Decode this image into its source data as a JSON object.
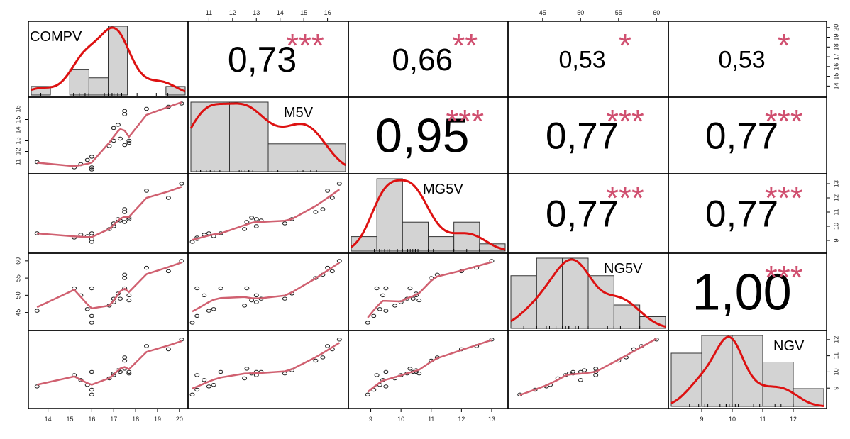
{
  "chart_data": {
    "type": "scatter_matrix",
    "title": "",
    "variables": [
      {
        "name": "COMPV",
        "range": [
          13.3,
          20.2
        ],
        "ticks": [
          14,
          15,
          16,
          17,
          18,
          19,
          20
        ],
        "hist": {
          "breaks": [
            13,
            14,
            15,
            16,
            17,
            18,
            19,
            20,
            21
          ],
          "counts": [
            1,
            0,
            3,
            2,
            8,
            0,
            0,
            1
          ]
        }
      },
      {
        "name": "M5V",
        "range": [
          10.3,
          16.7
        ],
        "ticks": [
          11,
          12,
          13,
          14,
          15,
          16
        ],
        "hist": {
          "breaks": [
            10,
            12,
            14,
            16,
            18
          ],
          "counts": [
            5,
            5,
            2,
            2
          ]
        }
      },
      {
        "name": "MG5V",
        "range": [
          8.4,
          13.4
        ],
        "ticks": [
          9,
          10,
          11,
          12,
          13
        ],
        "hist": {
          "breaks": [
            8,
            9,
            10,
            11,
            12,
            13,
            14
          ],
          "counts": [
            1,
            5,
            2,
            1,
            2,
            0.5
          ]
        }
      },
      {
        "name": "NG5V",
        "range": [
          41,
          61
        ],
        "ticks": [
          45,
          50,
          55,
          60
        ],
        "hist": {
          "breaks": [
            40,
            44,
            48,
            52,
            56,
            60,
            64
          ],
          "counts": [
            4.5,
            6,
            6,
            4.5,
            2,
            1
          ]
        }
      },
      {
        "name": "NGV",
        "range": [
          8,
          12.3
        ],
        "ticks": [
          9,
          10,
          11,
          12
        ],
        "hist": {
          "breaks": [
            8,
            9,
            10,
            11,
            12,
            13
          ],
          "counts": [
            3,
            4,
            4,
            2.5,
            1
          ]
        }
      }
    ],
    "correlations": [
      {
        "row": 0,
        "col": 1,
        "value": "0,73",
        "stars": "***"
      },
      {
        "row": 0,
        "col": 2,
        "value": "0,66",
        "stars": "**"
      },
      {
        "row": 0,
        "col": 3,
        "value": "0,53",
        "stars": "*"
      },
      {
        "row": 0,
        "col": 4,
        "value": "0,53",
        "stars": "*"
      },
      {
        "row": 1,
        "col": 2,
        "value": "0,95",
        "stars": "***"
      },
      {
        "row": 1,
        "col": 3,
        "value": "0,77",
        "stars": "***"
      },
      {
        "row": 1,
        "col": 4,
        "value": "0,77",
        "stars": "***"
      },
      {
        "row": 2,
        "col": 3,
        "value": "0,77",
        "stars": "***"
      },
      {
        "row": 2,
        "col": 4,
        "value": "0,77",
        "stars": "***"
      },
      {
        "row": 3,
        "col": 4,
        "value": "1,00",
        "stars": "***"
      }
    ],
    "observations": [
      [
        13.5,
        11.0,
        9.5,
        45.5,
        9.1
      ],
      [
        15.2,
        10.5,
        9.2,
        52.0,
        9.8
      ],
      [
        15.5,
        10.8,
        9.4,
        50.0,
        9.5
      ],
      [
        15.8,
        11.2,
        9.3,
        46.0,
        9.2
      ],
      [
        16.0,
        11.5,
        9.5,
        52.0,
        10.0
      ],
      [
        16.0,
        10.5,
        9.1,
        44.0,
        8.9
      ],
      [
        16.0,
        10.3,
        8.9,
        42.0,
        8.6
      ],
      [
        16.8,
        12.5,
        9.8,
        47.0,
        9.6
      ],
      [
        17.0,
        13.0,
        10.0,
        48.0,
        9.8
      ],
      [
        17.0,
        14.2,
        10.2,
        49.0,
        9.9
      ],
      [
        17.2,
        14.5,
        10.5,
        50.5,
        10.1
      ],
      [
        17.3,
        13.2,
        10.4,
        49.0,
        10.0
      ],
      [
        17.5,
        12.6,
        10.3,
        52.0,
        10.2
      ],
      [
        17.5,
        15.5,
        11.0,
        55.0,
        10.7
      ],
      [
        17.5,
        15.8,
        11.2,
        56.0,
        10.9
      ],
      [
        17.7,
        13.0,
        10.5,
        50.0,
        10.0
      ],
      [
        17.7,
        12.8,
        10.6,
        48.5,
        9.9
      ],
      [
        18.5,
        16.0,
        12.5,
        58.0,
        11.6
      ],
      [
        19.5,
        16.2,
        12.0,
        57.0,
        11.4
      ],
      [
        20.1,
        16.5,
        13.0,
        60.0,
        12.0
      ]
    ]
  }
}
